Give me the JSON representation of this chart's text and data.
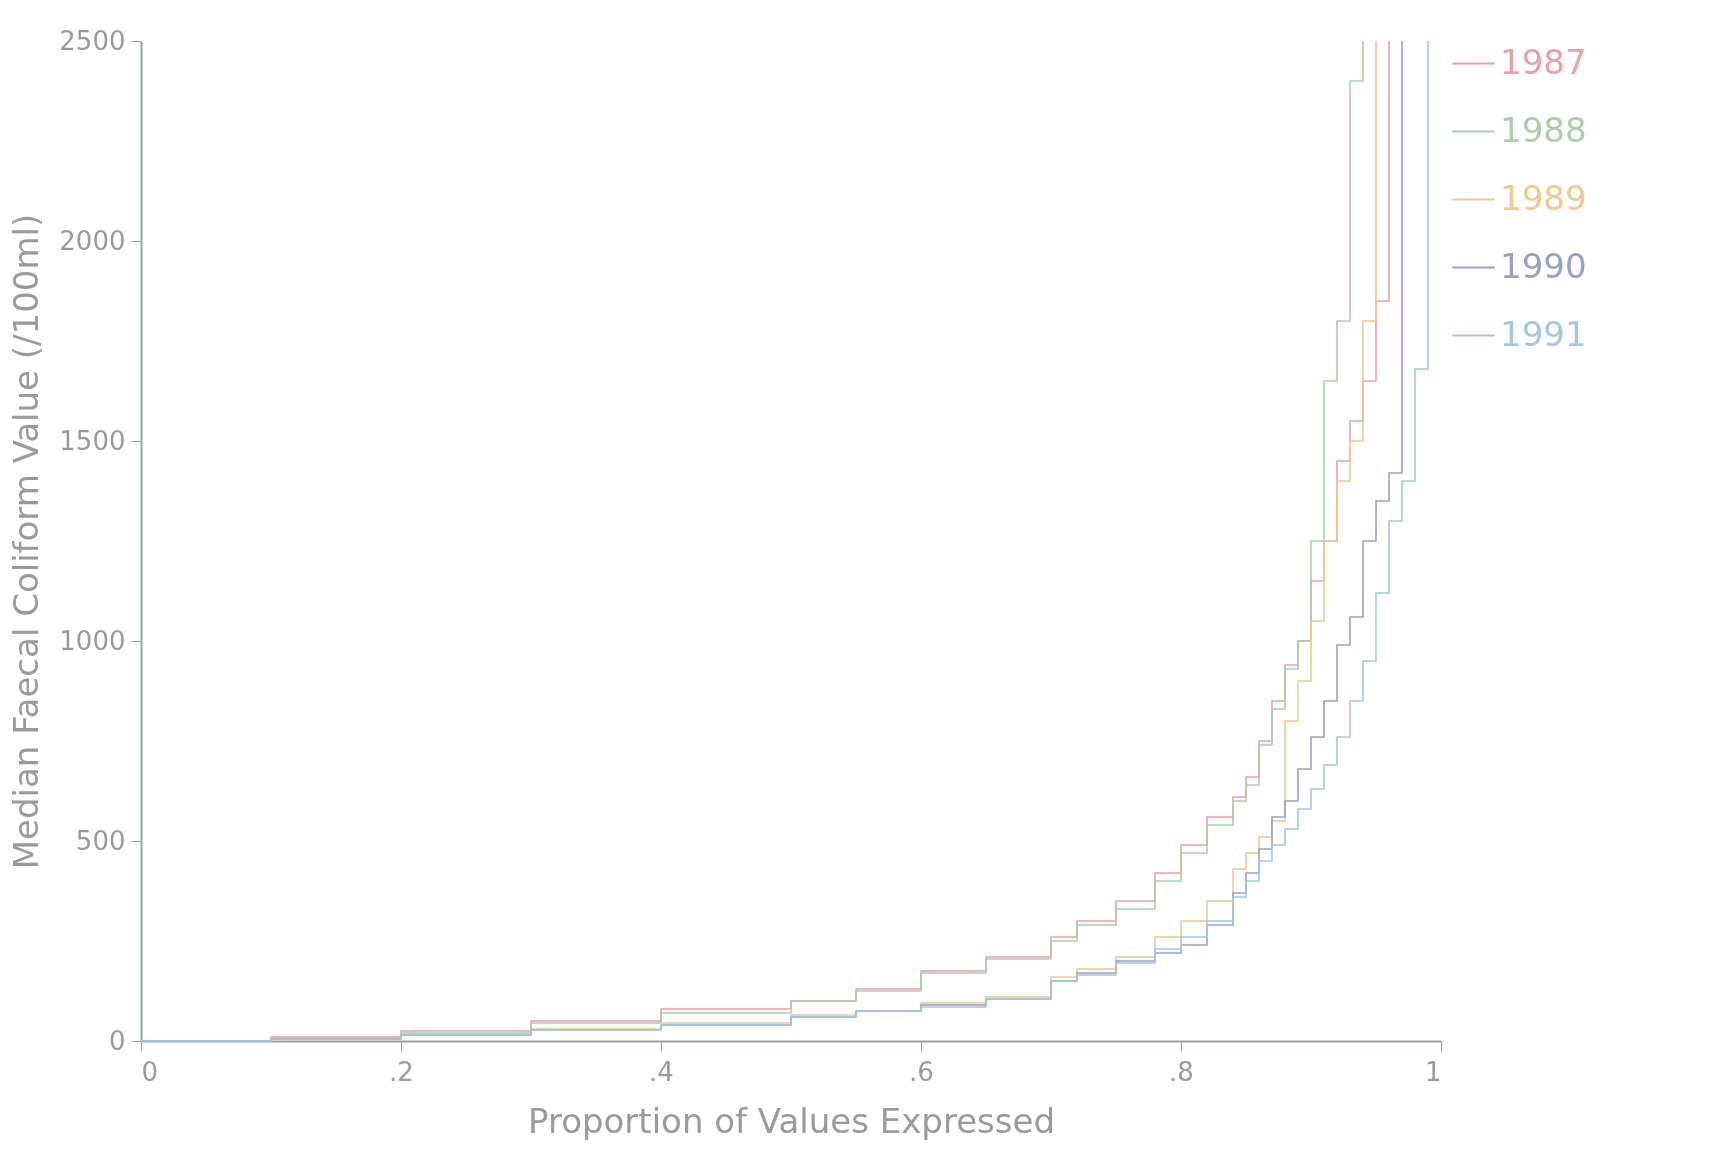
{
  "chart_data": {
    "type": "step",
    "xlabel": "Proportion of Values Expressed",
    "ylabel": "Median Faecal Coliform Value (/100ml)",
    "xlim": [
      0,
      1
    ],
    "ylim": [
      0,
      2500
    ],
    "xticks": [
      0,
      {
        "value": 0.2,
        "label": ".2"
      },
      {
        "value": 0.4,
        "label": ".4"
      },
      {
        "value": 0.6,
        "label": ".6"
      },
      {
        "value": 0.8,
        "label": ".8"
      },
      1
    ],
    "yticks": [
      0,
      500,
      1000,
      1500,
      2000,
      2500
    ],
    "grid": false,
    "legend": "top right",
    "marker": "none",
    "line_style": "solid",
    "x": [
      0,
      0.1,
      0.2,
      0.3,
      0.4,
      0.5,
      0.55,
      0.6,
      0.65,
      0.7,
      0.72,
      0.75,
      0.78,
      0.8,
      0.82,
      0.84,
      0.85,
      0.86,
      0.87,
      0.88,
      0.89,
      0.9,
      0.91,
      0.92,
      0.93,
      0.94,
      0.95,
      0.96,
      0.97,
      0.98,
      0.99
    ],
    "series": [
      {
        "name": "1987",
        "color": "#e8a0a8",
        "values": [
          0,
          10,
          25,
          50,
          80,
          100,
          130,
          175,
          210,
          260,
          300,
          350,
          420,
          490,
          560,
          610,
          660,
          750,
          850,
          940,
          1000,
          1150,
          1250,
          1450,
          1550,
          1650,
          1850,
          2500,
          null,
          null,
          null
        ]
      },
      {
        "name": "1988",
        "color": "#a8d0a8",
        "values": [
          0,
          8,
          20,
          45,
          70,
          100,
          125,
          170,
          205,
          250,
          290,
          330,
          400,
          470,
          540,
          600,
          640,
          740,
          830,
          930,
          1000,
          1250,
          1650,
          1800,
          2400,
          2500,
          null,
          null,
          null,
          null,
          null
        ]
      },
      {
        "name": "1989",
        "color": "#f0c890",
        "values": [
          0,
          5,
          18,
          30,
          45,
          65,
          75,
          95,
          110,
          160,
          180,
          210,
          260,
          300,
          350,
          430,
          470,
          510,
          550,
          800,
          900,
          1050,
          1250,
          1400,
          1500,
          1800,
          2500,
          null,
          null,
          null,
          null
        ]
      },
      {
        "name": "1990",
        "color": "#98a0c8",
        "values": [
          0,
          5,
          15,
          28,
          40,
          60,
          75,
          90,
          105,
          150,
          170,
          200,
          220,
          240,
          290,
          370,
          420,
          480,
          560,
          600,
          680,
          760,
          850,
          990,
          1060,
          1250,
          1350,
          1420,
          2500,
          null,
          null
        ]
      },
      {
        "name": "1991",
        "color": "#a0c8e0",
        "values": [
          0,
          5,
          15,
          28,
          40,
          60,
          75,
          85,
          105,
          150,
          165,
          195,
          230,
          260,
          300,
          360,
          400,
          450,
          490,
          530,
          580,
          630,
          690,
          760,
          850,
          950,
          1120,
          1300,
          1400,
          1680,
          2500
        ]
      }
    ]
  }
}
